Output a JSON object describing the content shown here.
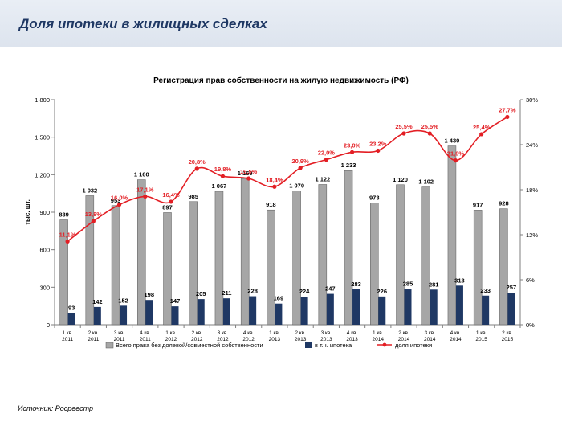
{
  "slide": {
    "title": "Доля ипотеки в жилищных сделках",
    "source": "Источник: Росреестр"
  },
  "colors": {
    "total_bar": "#a6a6a6",
    "mortgage_bar": "#1f3864",
    "share_line": "#e31e24",
    "header_band": "#e4e9f1",
    "title_text": "#1f3864"
  },
  "chart_data": {
    "type": "bar",
    "title": "Регистрация прав собственности на жилую недвижимость (РФ)",
    "ylabel": "тыс. шт.",
    "ylim": [
      0,
      1800
    ],
    "y_ticks": [
      "0",
      "300",
      "600",
      "900",
      "1 200",
      "1 500",
      "1 800"
    ],
    "y2lim": [
      0,
      30
    ],
    "y2_ticks": [
      "0%",
      "6%",
      "12%",
      "18%",
      "24%",
      "30%"
    ],
    "grid": false,
    "legend_position": "bottom",
    "categories": [
      [
        "1 кв.",
        "2011"
      ],
      [
        "2 кв.",
        "2011"
      ],
      [
        "3 кв.",
        "2011"
      ],
      [
        "4 кв.",
        "2011"
      ],
      [
        "1 кв.",
        "2012"
      ],
      [
        "2 кв.",
        "2012"
      ],
      [
        "3 кв.",
        "2012"
      ],
      [
        "4 кв.",
        "2012"
      ],
      [
        "1 кв.",
        "2013"
      ],
      [
        "2 кв.",
        "2013"
      ],
      [
        "3 кв.",
        "2013"
      ],
      [
        "4 кв.",
        "2013"
      ],
      [
        "1 кв.",
        "2014"
      ],
      [
        "2 кв.",
        "2014"
      ],
      [
        "3 кв.",
        "2014"
      ],
      [
        "4 кв.",
        "2014"
      ],
      [
        "1 кв.",
        "2015"
      ],
      [
        "2 кв.",
        "2015"
      ]
    ],
    "series": [
      {
        "name": "Всего права без долевой/совместной собственности",
        "type": "bar",
        "axis": "left",
        "values": [
          839,
          1032,
          953,
          1160,
          897,
          985,
          1067,
          1169,
          918,
          1070,
          1122,
          1233,
          973,
          1120,
          1102,
          1430,
          917,
          928
        ],
        "labels": [
          "839",
          "1 032",
          "953",
          "1 160",
          "897",
          "985",
          "1 067",
          "1 169",
          "918",
          "1 070",
          "1 122",
          "1 233",
          "973",
          "1 120",
          "1 102",
          "1 430",
          "917",
          "928"
        ]
      },
      {
        "name": "в т.ч. ипотека",
        "type": "bar",
        "axis": "left",
        "values": [
          93,
          142,
          152,
          198,
          147,
          205,
          211,
          228,
          169,
          224,
          247,
          283,
          226,
          285,
          281,
          313,
          233,
          257
        ],
        "labels": [
          "93",
          "142",
          "152",
          "198",
          "147",
          "205",
          "211",
          "228",
          "169",
          "224",
          "247",
          "283",
          "226",
          "285",
          "281",
          "313",
          "233",
          "257"
        ]
      },
      {
        "name": "доля ипотеки",
        "type": "line",
        "axis": "right",
        "values": [
          11.1,
          13.8,
          16.0,
          17.1,
          16.4,
          20.8,
          19.8,
          19.5,
          18.4,
          20.9,
          22.0,
          23.0,
          23.2,
          25.5,
          25.5,
          21.9,
          25.4,
          27.7
        ],
        "labels": [
          "11,1%",
          "13,8%",
          "16,0%",
          "17,1%",
          "16,4%",
          "20,8%",
          "19,8%",
          "19,5%",
          "18,4%",
          "20,9%",
          "22,0%",
          "23,0%",
          "23,2%",
          "25,5%",
          "25,5%",
          "21,9%",
          "25,4%",
          "27,7%"
        ]
      }
    ]
  }
}
